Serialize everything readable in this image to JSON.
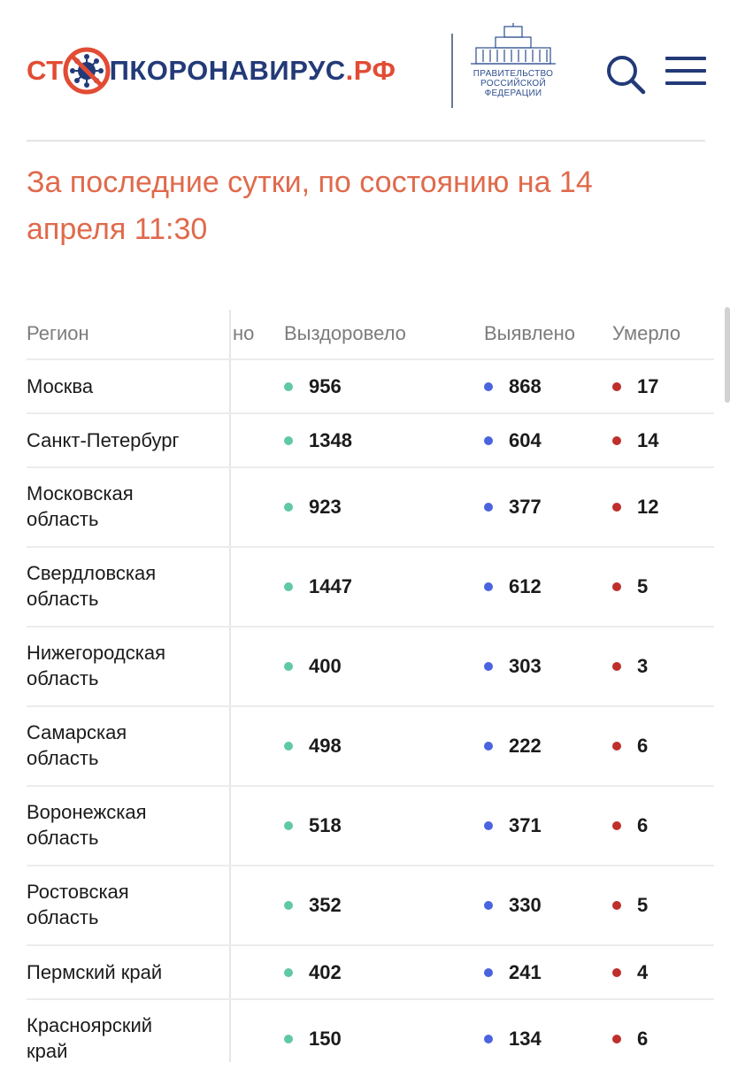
{
  "header": {
    "logo": {
      "part1": "СТ",
      "part2": "ПКОРОНАВИРУС",
      "part3": ".РФ"
    },
    "gov": {
      "line1": "ПРАВИТЕЛЬСТВО",
      "line2": "РОССИЙСКОЙ",
      "line3": "ФЕДЕРАЦИИ"
    },
    "icons": {
      "search": "search-icon",
      "menu": "hamburger-menu-icon"
    }
  },
  "headline": "За последние сутки, по состоянию на 14 апреля 11:30",
  "table": {
    "headers": {
      "region": "Регион",
      "hidden": "но",
      "recovered": "Выздоровело",
      "detected": "Выявлено",
      "died": "Умерло"
    },
    "rows": [
      {
        "region": "Москва",
        "recovered": "956",
        "detected": "868",
        "died": "17"
      },
      {
        "region": "Санкт-Петербург",
        "recovered": "1348",
        "detected": "604",
        "died": "14"
      },
      {
        "region": "Московская\nобласть",
        "recovered": "923",
        "detected": "377",
        "died": "12"
      },
      {
        "region": "Свердловская\nобласть",
        "recovered": "1447",
        "detected": "612",
        "died": "5"
      },
      {
        "region": "Нижегородская\nобласть",
        "recovered": "400",
        "detected": "303",
        "died": "3"
      },
      {
        "region": "Самарская\nобласть",
        "recovered": "498",
        "detected": "222",
        "died": "6"
      },
      {
        "region": "Воронежская\nобласть",
        "recovered": "518",
        "detected": "371",
        "died": "6"
      },
      {
        "region": "Ростовская\nобласть",
        "recovered": "352",
        "detected": "330",
        "died": "5"
      },
      {
        "region": "Пермский край",
        "recovered": "402",
        "detected": "241",
        "died": "4"
      },
      {
        "region": "Красноярский\nкрай",
        "recovered": "150",
        "detected": "134",
        "died": "6"
      }
    ]
  },
  "colors": {
    "brand_red": "#e24c34",
    "brand_blue": "#233a78",
    "recovered": "#5fc9a3",
    "detected": "#4a63df",
    "died": "#bf2f2b",
    "headline": "#e06a4c"
  }
}
